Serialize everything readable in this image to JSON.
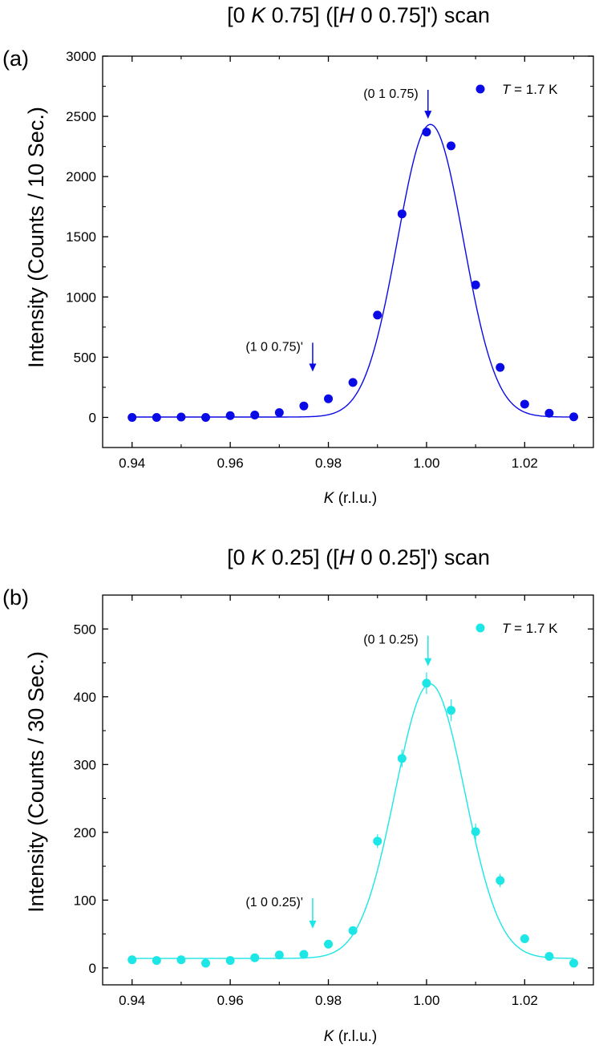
{
  "chart_data": [
    {
      "type": "scatter",
      "panel_label": "(a)",
      "title_parts": [
        "[0 ",
        "K",
        " 0.75] ([",
        "H",
        " 0 0.75]') scan"
      ],
      "ylabel": "Intensity (Counts / 10 Sec.)",
      "xlabel_var": "K",
      "xlabel_unit": " (r.l.u.)",
      "xlim": [
        0.934,
        1.034
      ],
      "ylim": [
        -250,
        3000
      ],
      "xticks": [
        0.94,
        0.96,
        0.98,
        1.0,
        1.02
      ],
      "xtick_labels": [
        "0.94",
        "0.96",
        "0.98",
        "1.00",
        "1.02"
      ],
      "yticks": [
        0,
        500,
        1000,
        1500,
        2000,
        2500,
        3000
      ],
      "ytick_labels": [
        "0",
        "500",
        "1000",
        "1500",
        "2000",
        "2500",
        "3000"
      ],
      "color": "#0a0ae6",
      "legend_var": "T",
      "legend_rest": " = 1.7 K",
      "x": [
        0.94,
        0.945,
        0.95,
        0.955,
        0.96,
        0.965,
        0.97,
        0.975,
        0.98,
        0.985,
        0.99,
        0.995,
        1.0,
        1.005,
        1.01,
        1.015,
        1.02,
        1.025,
        1.03
      ],
      "y": [
        0,
        0,
        3,
        0,
        15,
        20,
        40,
        95,
        155,
        290,
        850,
        1690,
        2370,
        2255,
        1100,
        415,
        110,
        35,
        5
      ],
      "yerr": [
        0,
        0,
        0,
        0,
        0,
        0,
        0,
        0,
        0,
        0,
        0,
        0,
        0,
        0,
        0,
        0,
        0,
        0,
        0
      ],
      "fit": {
        "amplitude": 2430,
        "center": 1.0008,
        "sigma": 0.0067,
        "offset": 3
      },
      "annotations": [
        {
          "text": "(0 1 0.75)",
          "x": 1.0003,
          "y_tip": 2480,
          "y_tail": 2720
        },
        {
          "text": "(1 0 0.75)'",
          "x": 0.9768,
          "y_tip": 380,
          "y_tail": 620
        }
      ]
    },
    {
      "type": "scatter",
      "panel_label": "(b)",
      "title_parts": [
        "[0 ",
        "K",
        " 0.25] ([",
        "H",
        " 0 0.25]') scan"
      ],
      "ylabel": "Intensity (Counts / 30 Sec.)",
      "xlabel_var": "K",
      "xlabel_unit": " (r.l.u.)",
      "xlim": [
        0.934,
        1.034
      ],
      "ylim": [
        -25,
        550
      ],
      "xticks": [
        0.94,
        0.96,
        0.98,
        1.0,
        1.02
      ],
      "xtick_labels": [
        "0.94",
        "0.96",
        "0.98",
        "1.00",
        "1.02"
      ],
      "yticks": [
        0,
        100,
        200,
        300,
        400,
        500
      ],
      "ytick_labels": [
        "0",
        "100",
        "200",
        "300",
        "400",
        "500"
      ],
      "color": "#1de6e6",
      "legend_var": "T",
      "legend_rest": " = 1.7 K",
      "x": [
        0.94,
        0.945,
        0.95,
        0.955,
        0.96,
        0.965,
        0.97,
        0.975,
        0.98,
        0.985,
        0.99,
        0.995,
        1.0,
        1.005,
        1.01,
        1.015,
        1.02,
        1.025,
        1.03
      ],
      "y": [
        12,
        11,
        12,
        7,
        11,
        15,
        19,
        20,
        35,
        55,
        187,
        309,
        420,
        380,
        201,
        129,
        43,
        17,
        7
      ],
      "yerr": [
        3,
        3,
        3,
        3,
        3,
        4,
        4,
        4,
        5,
        6,
        10,
        13,
        16,
        16,
        12,
        10,
        5,
        4,
        3
      ],
      "fit": {
        "amplitude": 405,
        "center": 1.0007,
        "sigma": 0.0071,
        "offset": 14
      },
      "annotations": [
        {
          "text": "(0 1 0.25)",
          "x": 1.0003,
          "y_tip": 445,
          "y_tail": 490
        },
        {
          "text": "(1 0 0.25)'",
          "x": 0.9768,
          "y_tip": 58,
          "y_tail": 103
        }
      ]
    }
  ]
}
